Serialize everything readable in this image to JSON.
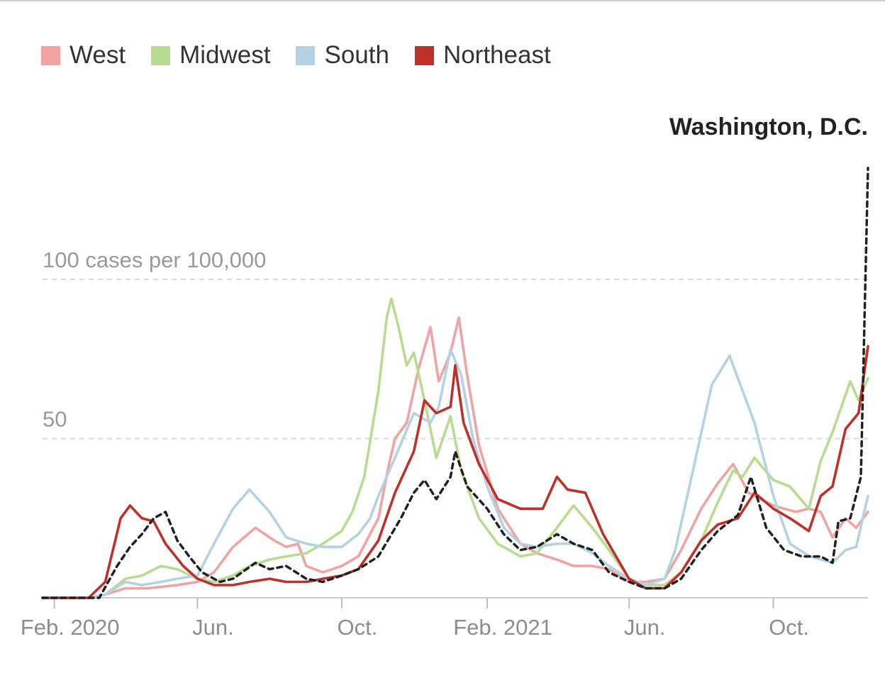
{
  "chart_data": {
    "type": "line",
    "annotation": "Washington, D.C.",
    "y_gridlines": [
      {
        "value": 100,
        "label": "100 cases per 100,000"
      },
      {
        "value": 50,
        "label": "50"
      }
    ],
    "x_ticks": [
      {
        "label": "Feb. 2020",
        "x": "2020-02-01"
      },
      {
        "label": "Jun.",
        "x": "2020-06-01"
      },
      {
        "label": "Oct.",
        "x": "2020-10-01"
      },
      {
        "label": "Feb. 2021",
        "x": "2021-02-01"
      },
      {
        "label": "Jun.",
        "x": "2021-06-01"
      },
      {
        "label": "Oct.",
        "x": "2021-10-01"
      }
    ],
    "xlim": [
      "2020-01-22",
      "2021-12-20"
    ],
    "ylim": [
      0,
      135
    ],
    "grid": true,
    "legend_placement": "top-left",
    "series": [
      {
        "name": "West",
        "color": "#f0a3a0",
        "style": "solid",
        "points": [
          [
            "2020-01-22",
            0
          ],
          [
            "2020-03-01",
            0
          ],
          [
            "2020-03-15",
            1
          ],
          [
            "2020-04-01",
            3
          ],
          [
            "2020-04-20",
            3
          ],
          [
            "2020-05-15",
            4
          ],
          [
            "2020-06-01",
            5
          ],
          [
            "2020-06-15",
            8
          ],
          [
            "2020-07-01",
            16
          ],
          [
            "2020-07-20",
            22
          ],
          [
            "2020-08-05",
            18
          ],
          [
            "2020-08-15",
            16
          ],
          [
            "2020-08-25",
            17
          ],
          [
            "2020-09-01",
            10
          ],
          [
            "2020-09-15",
            8
          ],
          [
            "2020-10-01",
            10
          ],
          [
            "2020-10-15",
            13
          ],
          [
            "2020-11-01",
            25
          ],
          [
            "2020-11-10",
            42
          ],
          [
            "2020-11-15",
            50
          ],
          [
            "2020-11-25",
            55
          ],
          [
            "2020-12-05",
            72
          ],
          [
            "2020-12-15",
            85
          ],
          [
            "2020-12-22",
            68
          ],
          [
            "2021-01-01",
            77
          ],
          [
            "2021-01-08",
            88
          ],
          [
            "2021-01-15",
            70
          ],
          [
            "2021-01-25",
            48
          ],
          [
            "2021-02-10",
            28
          ],
          [
            "2021-03-01",
            17
          ],
          [
            "2021-03-15",
            14
          ],
          [
            "2021-04-01",
            12
          ],
          [
            "2021-04-15",
            10
          ],
          [
            "2021-05-01",
            10
          ],
          [
            "2021-05-15",
            9
          ],
          [
            "2021-06-01",
            5
          ],
          [
            "2021-06-15",
            5
          ],
          [
            "2021-07-01",
            6
          ],
          [
            "2021-07-15",
            15
          ],
          [
            "2021-08-01",
            28
          ],
          [
            "2021-08-15",
            36
          ],
          [
            "2021-08-28",
            42
          ],
          [
            "2021-09-10",
            33
          ],
          [
            "2021-09-20",
            31
          ],
          [
            "2021-10-01",
            29
          ],
          [
            "2021-10-10",
            28
          ],
          [
            "2021-10-20",
            27
          ],
          [
            "2021-10-31",
            28
          ],
          [
            "2021-11-10",
            27
          ],
          [
            "2021-11-20",
            19
          ],
          [
            "2021-12-01",
            25
          ],
          [
            "2021-12-10",
            22
          ],
          [
            "2021-12-20",
            27
          ]
        ]
      },
      {
        "name": "Midwest",
        "color": "#b7dc8f",
        "style": "solid",
        "points": [
          [
            "2020-01-22",
            0
          ],
          [
            "2020-03-01",
            0
          ],
          [
            "2020-03-15",
            1
          ],
          [
            "2020-04-01",
            6
          ],
          [
            "2020-04-15",
            7
          ],
          [
            "2020-05-01",
            10
          ],
          [
            "2020-05-15",
            9
          ],
          [
            "2020-06-01",
            6
          ],
          [
            "2020-06-15",
            5
          ],
          [
            "2020-07-01",
            7
          ],
          [
            "2020-07-15",
            10
          ],
          [
            "2020-08-01",
            12
          ],
          [
            "2020-08-15",
            13
          ],
          [
            "2020-09-01",
            14
          ],
          [
            "2020-09-15",
            17
          ],
          [
            "2020-10-01",
            21
          ],
          [
            "2020-10-10",
            27
          ],
          [
            "2020-10-20",
            38
          ],
          [
            "2020-11-01",
            65
          ],
          [
            "2020-11-08",
            88
          ],
          [
            "2020-11-12",
            94
          ],
          [
            "2020-11-18",
            85
          ],
          [
            "2020-11-25",
            73
          ],
          [
            "2020-12-01",
            77
          ],
          [
            "2020-12-10",
            62
          ],
          [
            "2020-12-20",
            44
          ],
          [
            "2021-01-01",
            57
          ],
          [
            "2021-01-10",
            40
          ],
          [
            "2021-01-25",
            25
          ],
          [
            "2021-02-10",
            17
          ],
          [
            "2021-03-01",
            13
          ],
          [
            "2021-03-15",
            14
          ],
          [
            "2021-04-01",
            22
          ],
          [
            "2021-04-15",
            29
          ],
          [
            "2021-05-01",
            22
          ],
          [
            "2021-05-15",
            15
          ],
          [
            "2021-06-01",
            6
          ],
          [
            "2021-06-15",
            4
          ],
          [
            "2021-07-01",
            4
          ],
          [
            "2021-07-15",
            8
          ],
          [
            "2021-08-01",
            18
          ],
          [
            "2021-08-15",
            30
          ],
          [
            "2021-08-28",
            40
          ],
          [
            "2021-09-05",
            38
          ],
          [
            "2021-09-15",
            44
          ],
          [
            "2021-10-01",
            37
          ],
          [
            "2021-10-15",
            35
          ],
          [
            "2021-10-31",
            28
          ],
          [
            "2021-11-10",
            43
          ],
          [
            "2021-11-20",
            52
          ],
          [
            "2021-12-05",
            68
          ],
          [
            "2021-12-12",
            62
          ],
          [
            "2021-12-20",
            69
          ]
        ]
      },
      {
        "name": "South",
        "color": "#b3d2e4",
        "style": "solid",
        "points": [
          [
            "2020-01-22",
            0
          ],
          [
            "2020-03-01",
            0
          ],
          [
            "2020-03-15",
            1
          ],
          [
            "2020-04-01",
            5
          ],
          [
            "2020-04-15",
            4
          ],
          [
            "2020-05-01",
            5
          ],
          [
            "2020-05-15",
            6
          ],
          [
            "2020-06-01",
            7
          ],
          [
            "2020-06-15",
            17
          ],
          [
            "2020-07-01",
            28
          ],
          [
            "2020-07-15",
            34
          ],
          [
            "2020-08-01",
            27
          ],
          [
            "2020-08-15",
            19
          ],
          [
            "2020-09-01",
            17
          ],
          [
            "2020-09-15",
            16
          ],
          [
            "2020-10-01",
            16
          ],
          [
            "2020-10-15",
            20
          ],
          [
            "2020-10-25",
            25
          ],
          [
            "2020-11-01",
            32
          ],
          [
            "2020-11-15",
            44
          ],
          [
            "2020-12-01",
            58
          ],
          [
            "2020-12-15",
            55
          ],
          [
            "2020-12-22",
            60
          ],
          [
            "2021-01-01",
            78
          ],
          [
            "2021-01-10",
            70
          ],
          [
            "2021-01-20",
            50
          ],
          [
            "2021-02-01",
            35
          ],
          [
            "2021-02-15",
            22
          ],
          [
            "2021-03-01",
            17
          ],
          [
            "2021-03-15",
            16
          ],
          [
            "2021-04-01",
            17
          ],
          [
            "2021-04-15",
            17
          ],
          [
            "2021-05-01",
            14
          ],
          [
            "2021-05-15",
            10
          ],
          [
            "2021-06-01",
            6
          ],
          [
            "2021-06-15",
            4
          ],
          [
            "2021-07-01",
            6
          ],
          [
            "2021-07-10",
            15
          ],
          [
            "2021-07-25",
            40
          ],
          [
            "2021-08-10",
            67
          ],
          [
            "2021-08-25",
            76
          ],
          [
            "2021-09-05",
            65
          ],
          [
            "2021-09-15",
            55
          ],
          [
            "2021-10-01",
            32
          ],
          [
            "2021-10-15",
            17
          ],
          [
            "2021-11-01",
            13
          ],
          [
            "2021-11-20",
            11
          ],
          [
            "2021-12-01",
            15
          ],
          [
            "2021-12-10",
            16
          ],
          [
            "2021-12-20",
            32
          ]
        ]
      },
      {
        "name": "Northeast",
        "color": "#c0302a",
        "style": "solid",
        "points": [
          [
            "2020-01-22",
            0
          ],
          [
            "2020-03-01",
            0
          ],
          [
            "2020-03-15",
            5
          ],
          [
            "2020-03-28",
            25
          ],
          [
            "2020-04-05",
            29
          ],
          [
            "2020-04-15",
            25
          ],
          [
            "2020-04-25",
            24
          ],
          [
            "2020-05-05",
            17
          ],
          [
            "2020-05-20",
            10
          ],
          [
            "2020-06-01",
            6
          ],
          [
            "2020-06-15",
            4
          ],
          [
            "2020-07-01",
            4
          ],
          [
            "2020-07-15",
            5
          ],
          [
            "2020-08-01",
            6
          ],
          [
            "2020-08-15",
            5
          ],
          [
            "2020-09-01",
            5
          ],
          [
            "2020-09-15",
            6
          ],
          [
            "2020-10-01",
            7
          ],
          [
            "2020-10-15",
            9
          ],
          [
            "2020-11-01",
            18
          ],
          [
            "2020-11-15",
            33
          ],
          [
            "2020-12-01",
            46
          ],
          [
            "2020-12-10",
            62
          ],
          [
            "2020-12-20",
            58
          ],
          [
            "2021-01-01",
            60
          ],
          [
            "2021-01-05",
            73
          ],
          [
            "2021-01-12",
            55
          ],
          [
            "2021-01-25",
            42
          ],
          [
            "2021-02-10",
            31
          ],
          [
            "2021-03-01",
            28
          ],
          [
            "2021-03-20",
            28
          ],
          [
            "2021-04-01",
            38
          ],
          [
            "2021-04-10",
            34
          ],
          [
            "2021-04-25",
            33
          ],
          [
            "2021-05-10",
            20
          ],
          [
            "2021-06-01",
            6
          ],
          [
            "2021-06-15",
            3
          ],
          [
            "2021-07-01",
            3
          ],
          [
            "2021-07-15",
            8
          ],
          [
            "2021-08-01",
            18
          ],
          [
            "2021-08-15",
            23
          ],
          [
            "2021-09-01",
            25
          ],
          [
            "2021-09-15",
            33
          ],
          [
            "2021-10-01",
            28
          ],
          [
            "2021-10-15",
            25
          ],
          [
            "2021-10-31",
            21
          ],
          [
            "2021-11-10",
            32
          ],
          [
            "2021-11-20",
            35
          ],
          [
            "2021-12-01",
            53
          ],
          [
            "2021-12-12",
            58
          ],
          [
            "2021-12-20",
            79
          ]
        ]
      },
      {
        "name": "Washington, D.C.",
        "color": "#222222",
        "style": "dashed",
        "points": [
          [
            "2020-01-22",
            0
          ],
          [
            "2020-03-10",
            0
          ],
          [
            "2020-03-25",
            10
          ],
          [
            "2020-04-05",
            16
          ],
          [
            "2020-04-15",
            20
          ],
          [
            "2020-04-25",
            25
          ],
          [
            "2020-05-05",
            27
          ],
          [
            "2020-05-15",
            18
          ],
          [
            "2020-05-25",
            13
          ],
          [
            "2020-06-05",
            8
          ],
          [
            "2020-06-20",
            5
          ],
          [
            "2020-07-01",
            6
          ],
          [
            "2020-07-20",
            11
          ],
          [
            "2020-08-01",
            9
          ],
          [
            "2020-08-15",
            10
          ],
          [
            "2020-09-01",
            6
          ],
          [
            "2020-09-15",
            5
          ],
          [
            "2020-10-01",
            7
          ],
          [
            "2020-10-15",
            9
          ],
          [
            "2020-11-01",
            13
          ],
          [
            "2020-11-20",
            25
          ],
          [
            "2020-12-01",
            33
          ],
          [
            "2020-12-10",
            37
          ],
          [
            "2020-12-20",
            31
          ],
          [
            "2021-01-01",
            38
          ],
          [
            "2021-01-05",
            46
          ],
          [
            "2021-01-15",
            35
          ],
          [
            "2021-02-01",
            28
          ],
          [
            "2021-02-15",
            20
          ],
          [
            "2021-03-01",
            15
          ],
          [
            "2021-03-15",
            16
          ],
          [
            "2021-04-01",
            20
          ],
          [
            "2021-04-15",
            17
          ],
          [
            "2021-05-01",
            15
          ],
          [
            "2021-05-15",
            8
          ],
          [
            "2021-06-01",
            5
          ],
          [
            "2021-06-15",
            3
          ],
          [
            "2021-07-01",
            3
          ],
          [
            "2021-07-15",
            6
          ],
          [
            "2021-08-01",
            15
          ],
          [
            "2021-08-15",
            21
          ],
          [
            "2021-09-01",
            26
          ],
          [
            "2021-09-12",
            38
          ],
          [
            "2021-09-25",
            22
          ],
          [
            "2021-10-10",
            15
          ],
          [
            "2021-10-25",
            13
          ],
          [
            "2021-11-10",
            13
          ],
          [
            "2021-11-20",
            11
          ],
          [
            "2021-11-25",
            24
          ],
          [
            "2021-12-05",
            25
          ],
          [
            "2021-12-14",
            38
          ],
          [
            "2021-12-20",
            135
          ]
        ]
      }
    ]
  }
}
